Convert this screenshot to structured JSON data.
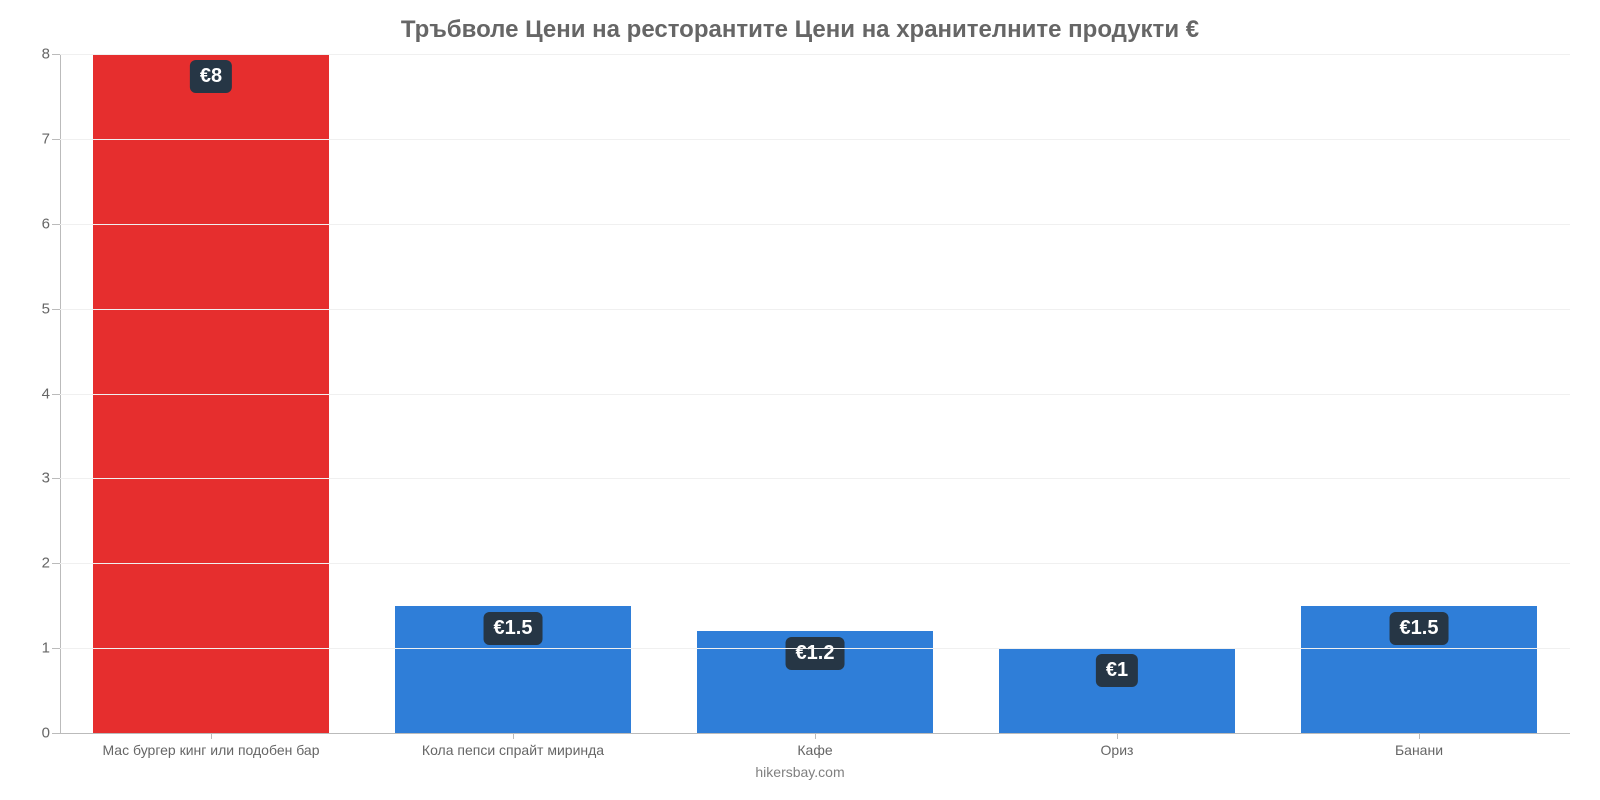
{
  "chart": {
    "type": "bar",
    "title": "Тръбволе Цени на ресторантите Цени на хранителните продукти €",
    "title_color": "#666666",
    "title_fontsize": 24,
    "source": "hikersbay.com",
    "source_color": "#808080",
    "background_color": "#ffffff",
    "grid_color": "#f0f0f0",
    "axis_color": "#bbbbbb",
    "tick_label_color": "#666666",
    "tick_label_fontsize": 15,
    "x_label_fontsize": 14,
    "y": {
      "min": 0,
      "max": 8,
      "ticks": [
        0,
        1,
        2,
        3,
        4,
        5,
        6,
        7,
        8
      ]
    },
    "bar_width_pct": 78,
    "value_label_bg": "#263645",
    "value_label_color": "#ffffff",
    "value_label_fontsize": 20,
    "colors": {
      "red": "#e62e2e",
      "blue": "#2f7ed8"
    },
    "bars": [
      {
        "category": "Мас бургер кинг или подобен бар",
        "value": 8,
        "display": "€8",
        "colorKey": "red"
      },
      {
        "category": "Кола пепси спрайт миринда",
        "value": 1.5,
        "display": "€1.5",
        "colorKey": "blue"
      },
      {
        "category": "Кафе",
        "value": 1.2,
        "display": "€1.2",
        "colorKey": "blue"
      },
      {
        "category": "Ориз",
        "value": 1,
        "display": "€1",
        "colorKey": "blue"
      },
      {
        "category": "Банани",
        "value": 1.5,
        "display": "€1.5",
        "colorKey": "blue"
      }
    ]
  }
}
